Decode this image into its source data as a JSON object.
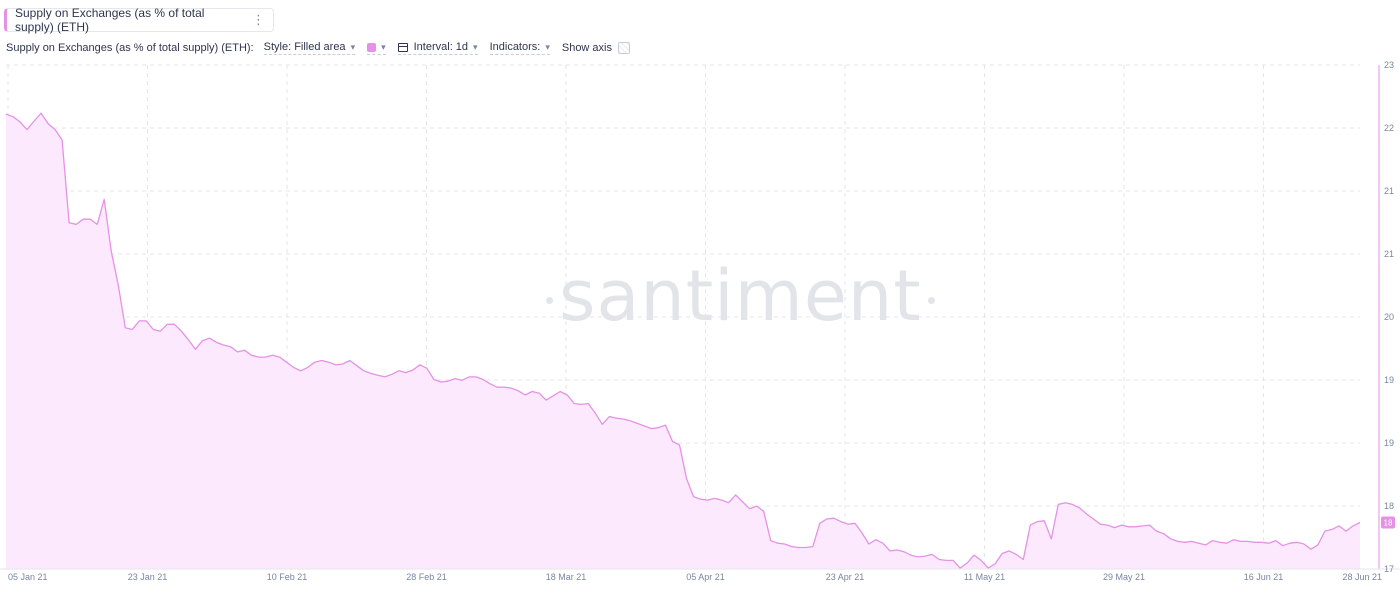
{
  "header": {
    "metric_chip": "Supply on Exchanges (as % of total supply) (ETH)",
    "menu_glyph": "⋮"
  },
  "toolbar": {
    "metric_label": "Supply on Exchanges (as % of total supply) (ETH):",
    "style_label": "Style: Filled area",
    "interval_label": "Interval: 1d",
    "indicators_label": "Indicators:",
    "show_axis_label": "Show axis"
  },
  "colors": {
    "series": "#e591e6",
    "fill": "#fce9fd",
    "grid": "#e4e6eb"
  },
  "icons": {
    "color": "swatch",
    "interval": "interval-icon",
    "chevron": "chevron-down-icon",
    "menu": "kebab-menu-icon"
  },
  "watermark": "santiment",
  "chart_data": {
    "type": "area",
    "title": "",
    "xlabel": "",
    "ylabel": "",
    "x_ticks": [
      "05 Jan 21",
      "23 Jan 21",
      "10 Feb 21",
      "28 Feb 21",
      "18 Mar 21",
      "05 Apr 21",
      "23 Apr 21",
      "11 May 21",
      "29 May 21",
      "16 Jun 21",
      "28 Jun 21"
    ],
    "y_ticks": [
      "23",
      "22",
      "21",
      "21",
      "20",
      "19",
      "19",
      "18",
      "17"
    ],
    "current_value_label": "18",
    "ylim": [
      17.4,
      23.25
    ],
    "grid": true,
    "legend": "none",
    "series": [
      {
        "values": [
          22.68,
          22.65,
          22.59,
          22.5,
          22.6,
          22.69,
          22.57,
          22.5,
          22.38,
          21.42,
          21.4,
          21.46,
          21.46,
          21.4,
          21.69,
          21.09,
          20.7,
          20.2,
          20.18,
          20.28,
          20.28,
          20.18,
          20.16,
          20.24,
          20.24,
          20.16,
          20.06,
          19.95,
          20.05,
          20.08,
          20.03,
          20.0,
          19.98,
          19.92,
          19.94,
          19.88,
          19.86,
          19.86,
          19.88,
          19.86,
          19.8,
          19.74,
          19.7,
          19.74,
          19.8,
          19.82,
          19.8,
          19.77,
          19.78,
          19.82,
          19.76,
          19.7,
          19.67,
          19.65,
          19.63,
          19.66,
          19.7,
          19.68,
          19.71,
          19.77,
          19.73,
          19.6,
          19.57,
          19.58,
          19.61,
          19.59,
          19.63,
          19.63,
          19.6,
          19.55,
          19.51,
          19.51,
          19.5,
          19.47,
          19.42,
          19.46,
          19.44,
          19.36,
          19.41,
          19.46,
          19.42,
          19.32,
          19.31,
          19.32,
          19.21,
          19.08,
          19.17,
          19.15,
          19.14,
          19.12,
          19.09,
          19.06,
          19.03,
          19.04,
          19.07,
          18.88,
          18.84,
          18.45,
          18.24,
          18.21,
          18.2,
          18.22,
          18.2,
          18.17,
          18.26,
          18.18,
          18.1,
          18.13,
          18.07,
          17.73,
          17.7,
          17.69,
          17.66,
          17.65,
          17.65,
          17.66,
          17.93,
          17.98,
          17.99,
          17.95,
          17.92,
          17.93,
          17.82,
          17.69,
          17.74,
          17.7,
          17.61,
          17.62,
          17.6,
          17.56,
          17.54,
          17.55,
          17.57,
          17.51,
          17.5,
          17.5,
          17.41,
          17.47,
          17.56,
          17.5,
          17.41,
          17.46,
          17.58,
          17.61,
          17.57,
          17.51,
          17.91,
          17.95,
          17.96,
          17.75,
          18.15,
          18.17,
          18.15,
          18.11,
          18.04,
          17.98,
          17.92,
          17.91,
          17.88,
          17.91,
          17.89,
          17.89,
          17.9,
          17.91,
          17.84,
          17.81,
          17.75,
          17.72,
          17.71,
          17.72,
          17.7,
          17.68,
          17.73,
          17.71,
          17.7,
          17.74,
          17.72,
          17.72,
          17.71,
          17.71,
          17.7,
          17.73,
          17.67,
          17.7,
          17.71,
          17.69,
          17.63,
          17.68,
          17.84,
          17.86,
          17.9,
          17.84,
          17.9,
          17.94
        ]
      }
    ]
  }
}
